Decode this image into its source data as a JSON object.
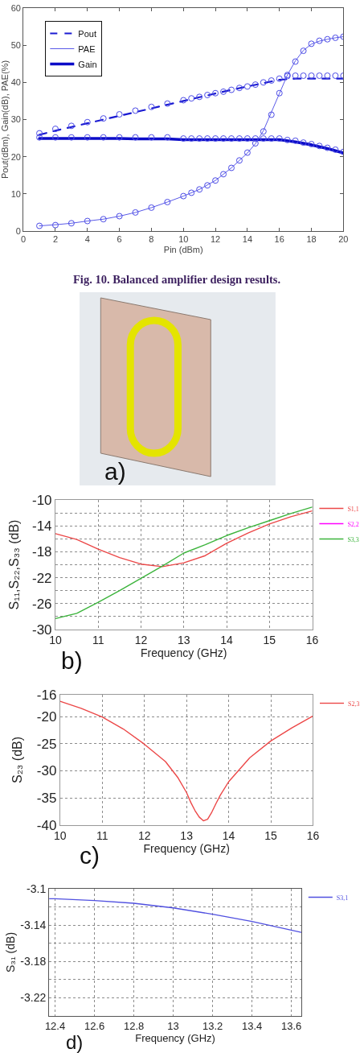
{
  "chart_data": [
    {
      "type": "line",
      "xlabel": "Pin (dBm)",
      "ylabel": "Pout(dBm), Gain(dB), PAE(%)",
      "annotations": [
        "Fig. 10. Balanced amplifier design results."
      ],
      "xlim": [
        0,
        20
      ],
      "xticks": [
        0,
        2,
        4,
        6,
        8,
        10,
        12,
        14,
        16,
        18,
        20
      ],
      "ylim": [
        0,
        60
      ],
      "yticks": [
        0,
        10,
        20,
        30,
        40,
        50,
        60
      ],
      "grid": false,
      "legend": "top left",
      "series": [
        {
          "name": "Pout",
          "color": "#1a1ad2",
          "line_style": "dashed",
          "x": [
            1,
            2,
            3,
            4,
            5,
            6,
            7,
            8,
            9,
            10,
            11,
            12,
            13,
            14,
            15,
            16,
            17,
            18,
            19,
            20
          ],
          "values": [
            25.9,
            27.0,
            28.0,
            29.0,
            30.0,
            31.0,
            32.0,
            33.0,
            34.0,
            35.0,
            36.0,
            37.0,
            38.0,
            38.9,
            39.8,
            40.7,
            41.0,
            41.0,
            41.0,
            41.0
          ]
        },
        {
          "name": "PAE",
          "color": "#5a5ae8",
          "line_style": "solid",
          "x": [
            1,
            2,
            3,
            4,
            5,
            6,
            7,
            8,
            9,
            10,
            11,
            12,
            13,
            14,
            14.5,
            15,
            15.5,
            16,
            16.5,
            17,
            17.5,
            18,
            18.5,
            19,
            19.5,
            20
          ],
          "values": [
            1.4,
            1.7,
            2.1,
            2.7,
            3.2,
            4.0,
            5.0,
            6.3,
            7.8,
            9.4,
            11.2,
            13.6,
            17.0,
            21.0,
            23.5,
            27.0,
            32.0,
            37.0,
            42.0,
            45.8,
            48.6,
            50.3,
            51.1,
            51.6,
            52.0,
            52.3
          ]
        },
        {
          "name": "Gain",
          "color": "#0c0cc8",
          "line_style": "solid",
          "x": [
            1,
            2,
            3,
            4,
            5,
            6,
            7,
            8,
            9,
            10,
            11,
            12,
            13,
            14,
            15,
            16,
            17,
            18,
            19,
            20
          ],
          "values": [
            24.9,
            24.9,
            24.9,
            24.9,
            24.9,
            24.9,
            24.8,
            24.8,
            24.8,
            24.6,
            24.6,
            24.6,
            24.6,
            24.6,
            24.6,
            24.6,
            24.0,
            23.2,
            22.2,
            21.0
          ]
        },
        {
          "type": "scatter",
          "color": "#4c4ce6",
          "marker": "circle",
          "x": [
            1,
            2,
            3,
            4,
            5,
            6,
            7,
            8,
            9,
            10,
            10.5,
            11,
            11.5,
            12,
            12.5,
            13,
            13.5,
            14,
            14.5,
            15,
            15.5,
            16,
            16.5,
            17,
            17.5,
            18,
            18.5,
            19,
            19.5,
            20,
            1,
            2,
            3,
            4,
            5,
            6,
            7,
            8,
            9,
            10,
            10.5,
            11,
            11.5,
            12,
            12.5,
            13,
            13.5,
            14,
            14.5,
            15,
            15.5,
            16,
            16.5,
            17,
            17.5,
            18,
            18.5,
            19,
            19.5,
            20,
            1,
            2,
            3,
            4,
            5,
            6,
            7,
            8,
            9,
            10,
            10.5,
            11,
            11.5,
            12,
            12.5,
            13,
            13.5,
            14,
            14.5,
            15,
            15.5,
            16,
            16.5,
            17,
            17.5,
            18,
            18.5,
            19,
            19.5,
            20
          ],
          "values": [
            26.3,
            27.5,
            28.3,
            29.3,
            30.3,
            31.4,
            32.4,
            33.4,
            34.3,
            35.2,
            35.7,
            36.1,
            36.6,
            37.1,
            37.5,
            38.0,
            38.5,
            38.9,
            39.4,
            40.0,
            40.5,
            41.0,
            41.7,
            41.8,
            41.8,
            41.8,
            41.8,
            41.8,
            41.8,
            41.8,
            25.2,
            25.2,
            25.2,
            25.2,
            25.2,
            25.2,
            25.2,
            25.2,
            25.2,
            24.9,
            24.9,
            24.9,
            24.9,
            24.9,
            24.9,
            24.9,
            24.9,
            24.9,
            24.9,
            24.9,
            24.9,
            24.9,
            24.5,
            24.3,
            23.8,
            23.4,
            22.9,
            22.4,
            21.9,
            21.3,
            1.4,
            1.6,
            2.1,
            2.7,
            3.2,
            4.0,
            5.0,
            6.3,
            7.8,
            9.4,
            10.3,
            11.2,
            12.3,
            13.6,
            15.3,
            17.0,
            19.0,
            21.1,
            23.6,
            26.8,
            31.3,
            37.1,
            42.0,
            45.6,
            48.5,
            50.4,
            51.2,
            51.6,
            52.0,
            52.3
          ]
        }
      ]
    },
    {
      "type": "other",
      "annotations": [
        "a)"
      ]
    },
    {
      "type": "line",
      "xlabel": "Frequency (GHz)",
      "ylabel": "S₁₁,S₂₂,S₃₃ (dB)",
      "annotations": [
        "b)"
      ],
      "xlim": [
        10,
        16
      ],
      "xticks": [
        10,
        11,
        12,
        13,
        14,
        15,
        16
      ],
      "ylim": [
        -30,
        -10
      ],
      "yticks": [
        -30,
        {
          "value": -28,
          "label": null
        },
        -26,
        {
          "value": -24,
          "label": null
        },
        -22,
        {
          "value": -20,
          "label": null
        },
        -18,
        {
          "value": -16,
          "label": null
        },
        -14,
        {
          "value": -12,
          "label": null
        },
        -10
      ],
      "grid": true,
      "legend": "top right",
      "series": [
        {
          "name": "S1,1",
          "color": "#ec4848",
          "x": [
            10,
            10.5,
            11,
            11.5,
            12,
            12.5,
            13,
            13.5,
            14,
            14.5,
            15,
            15.5,
            16
          ],
          "values": [
            -15.2,
            -16.1,
            -17.6,
            -18.9,
            -19.9,
            -20.3,
            -19.7,
            -18.6,
            -16.7,
            -15.1,
            -13.7,
            -12.6,
            -11.7
          ]
        },
        {
          "name": "S2,2",
          "color": "#ff00ff",
          "values": [
            null,
            null
          ]
        },
        {
          "name": "S3,3",
          "color": "#3cb43c",
          "x": [
            10,
            10.5,
            11,
            11.5,
            12,
            12.5,
            13,
            13.5,
            14,
            14.5,
            15,
            15.5,
            16
          ],
          "values": [
            -28.3,
            -27.5,
            -25.8,
            -24.0,
            -22.1,
            -20.2,
            -18.2,
            -16.9,
            -15.5,
            -14.3,
            -13.2,
            -12.1,
            -11.1
          ]
        }
      ]
    },
    {
      "type": "line",
      "xlabel": "Frequency (GHz)",
      "ylabel": "S₂₃ (dB)",
      "annotations": [
        "c)"
      ],
      "xlim": [
        10,
        16
      ],
      "xticks": [
        10,
        11,
        12,
        13,
        14,
        15,
        16
      ],
      "ylim": [
        -40,
        -16
      ],
      "yticks": [
        -40,
        -35,
        -30,
        -25,
        -20,
        -16
      ],
      "grid": true,
      "legend": "top right",
      "series": [
        {
          "name": "S2,3",
          "color": "#ec4848",
          "x": [
            10,
            10.5,
            11,
            11.5,
            12,
            12.5,
            12.8,
            13,
            13.1,
            13.2,
            13.3,
            13.4,
            13.5,
            13.6,
            13.7,
            13.8,
            14,
            14.5,
            15,
            15.5,
            16
          ],
          "values": [
            -17.2,
            -18.5,
            -20.1,
            -22.3,
            -25.1,
            -28.3,
            -31.3,
            -34.0,
            -35.8,
            -37.3,
            -38.5,
            -39.2,
            -38.9,
            -37.6,
            -36.0,
            -34.5,
            -32.0,
            -27.6,
            -24.5,
            -22.1,
            -19.9
          ]
        }
      ]
    },
    {
      "type": "line",
      "xlabel": "Frequency (GHz)",
      "ylabel": "S₃₁ (dB)",
      "annotations": [
        "d)"
      ],
      "xlim": [
        12.37,
        13.65
      ],
      "xticks": [
        12.4,
        12.6,
        12.8,
        13,
        13.2,
        13.4,
        13.6
      ],
      "ylim": [
        -3.24,
        -3.1
      ],
      "yticks": [
        {
          "value": -3.24,
          "label": null
        },
        -3.22,
        {
          "value": -3.2,
          "label": null
        },
        -3.18,
        {
          "value": -3.16,
          "label": null
        },
        -3.14,
        {
          "value": -3.12,
          "label": null
        },
        -3.1
      ],
      "grid": true,
      "legend": "top right",
      "series": [
        {
          "name": "S3,1",
          "color": "#5050e0",
          "x": [
            12.37,
            12.4,
            12.6,
            12.8,
            13,
            13.2,
            13.4,
            13.65
          ],
          "values": [
            -3.111,
            -3.111,
            -3.113,
            -3.116,
            -3.121,
            -3.128,
            -3.136,
            -3.148
          ]
        }
      ]
    }
  ]
}
